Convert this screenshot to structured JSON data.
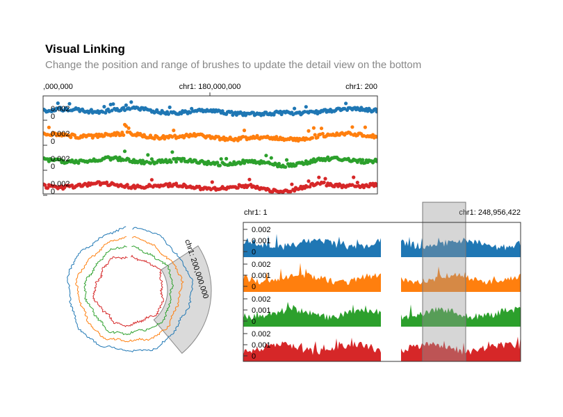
{
  "header": {
    "title": "Visual Linking",
    "subtitle": "Change the position and range of brushes to update the detail view on the bottom"
  },
  "colors": {
    "series": [
      "#1f77b4",
      "#ff7f0e",
      "#2ca02c",
      "#d62728"
    ],
    "brush": "#bbbbbb",
    "axis": "#333333"
  },
  "chart_data": [
    {
      "type": "scatter",
      "view": "overview-top",
      "x_tick_labels": [
        ",000,000",
        "chr1: 180,000,000",
        "chr1: 200"
      ],
      "track_tick_labels": [
        "0.002",
        "0"
      ],
      "tracks": 4
    },
    {
      "type": "line",
      "view": "circular",
      "layout": "circular",
      "brush_label": "chr1: 200,000,000",
      "tracks": 4
    },
    {
      "type": "area",
      "view": "detail",
      "x_tick_labels": [
        "chr1: 1",
        "chr1: 248,956,422"
      ],
      "track_tick_labels": [
        [
          "0.002",
          "0.001",
          "0"
        ],
        [
          "0.002",
          "0.001",
          "0"
        ],
        [
          "0.002",
          "0.001",
          "0"
        ],
        [
          "0.002",
          "0.001",
          "0"
        ]
      ],
      "tracks": 4
    }
  ]
}
